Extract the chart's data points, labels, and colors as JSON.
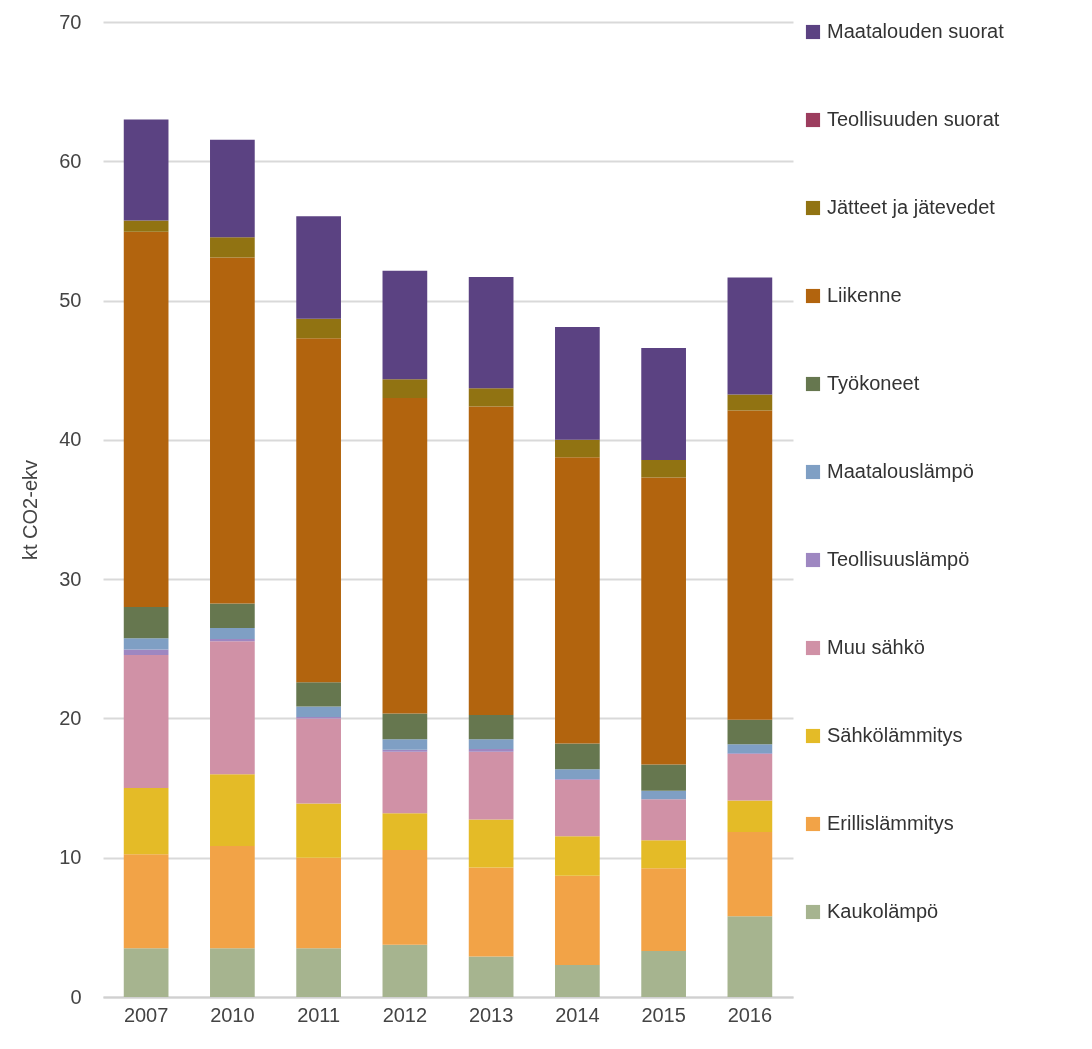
{
  "chart_data": {
    "type": "bar",
    "stacked": true,
    "ylabel": "kt CO2-ekv",
    "categories": [
      "2007",
      "2010",
      "2011",
      "2012",
      "2013",
      "2014",
      "2015",
      "2016"
    ],
    "ylim": [
      0,
      70
    ],
    "yticks": [
      0,
      10,
      20,
      30,
      40,
      50,
      60,
      70
    ],
    "grid": "y",
    "legend": "right",
    "series": [
      {
        "name": "Kaukolämpö",
        "color": "#a6b48f",
        "values": [
          3.5,
          3.5,
          3.5,
          3.75,
          2.9,
          2.3,
          3.3,
          5.8
        ]
      },
      {
        "name": "Erillislämmitys",
        "color": "#f2a347",
        "values": [
          6.75,
          7.35,
          6.5,
          6.8,
          6.4,
          6.4,
          5.95,
          6.05
        ]
      },
      {
        "name": "Sähkölämmitys",
        "color": "#e4bb27",
        "values": [
          4.75,
          5.15,
          3.9,
          2.65,
          3.45,
          2.85,
          2.0,
          2.25
        ]
      },
      {
        "name": "Muu sähkö",
        "color": "#d091a6",
        "values": [
          9.55,
          9.55,
          6.1,
          4.4,
          4.85,
          4.05,
          2.95,
          3.35
        ]
      },
      {
        "name": "Teollisuuslämpö",
        "color": "#9e87c1",
        "values": [
          0.4,
          0.15,
          0.1,
          0.15,
          0.2,
          0.05,
          null,
          0.05
        ]
      },
      {
        "name": "Maatalouslämpö",
        "color": "#7f9fc4",
        "values": [
          0.8,
          0.8,
          0.75,
          0.75,
          0.7,
          0.7,
          0.6,
          0.65
        ]
      },
      {
        "name": "Työkoneet",
        "color": "#66774f",
        "values": [
          2.25,
          1.75,
          1.75,
          1.85,
          1.75,
          1.85,
          1.9,
          1.75
        ]
      },
      {
        "name": "Liikenne",
        "color": "#b2640e",
        "values": [
          26.95,
          24.85,
          24.7,
          22.65,
          22.15,
          20.55,
          20.6,
          22.2
        ]
      },
      {
        "name": "Jätteet ja jätevedet",
        "color": "#917312",
        "values": [
          0.8,
          1.45,
          1.4,
          1.35,
          1.3,
          1.25,
          1.25,
          1.15
        ]
      },
      {
        "name": "Teollisuuden suorat",
        "color": "#9c3d5e",
        "values": [
          0,
          0,
          0,
          0,
          0,
          0,
          0,
          0
        ]
      },
      {
        "name": "Maatalouden suorat",
        "color": "#5b4282",
        "values": [
          7.25,
          7.0,
          7.35,
          7.8,
          8.0,
          8.1,
          8.05,
          8.4
        ]
      }
    ]
  }
}
